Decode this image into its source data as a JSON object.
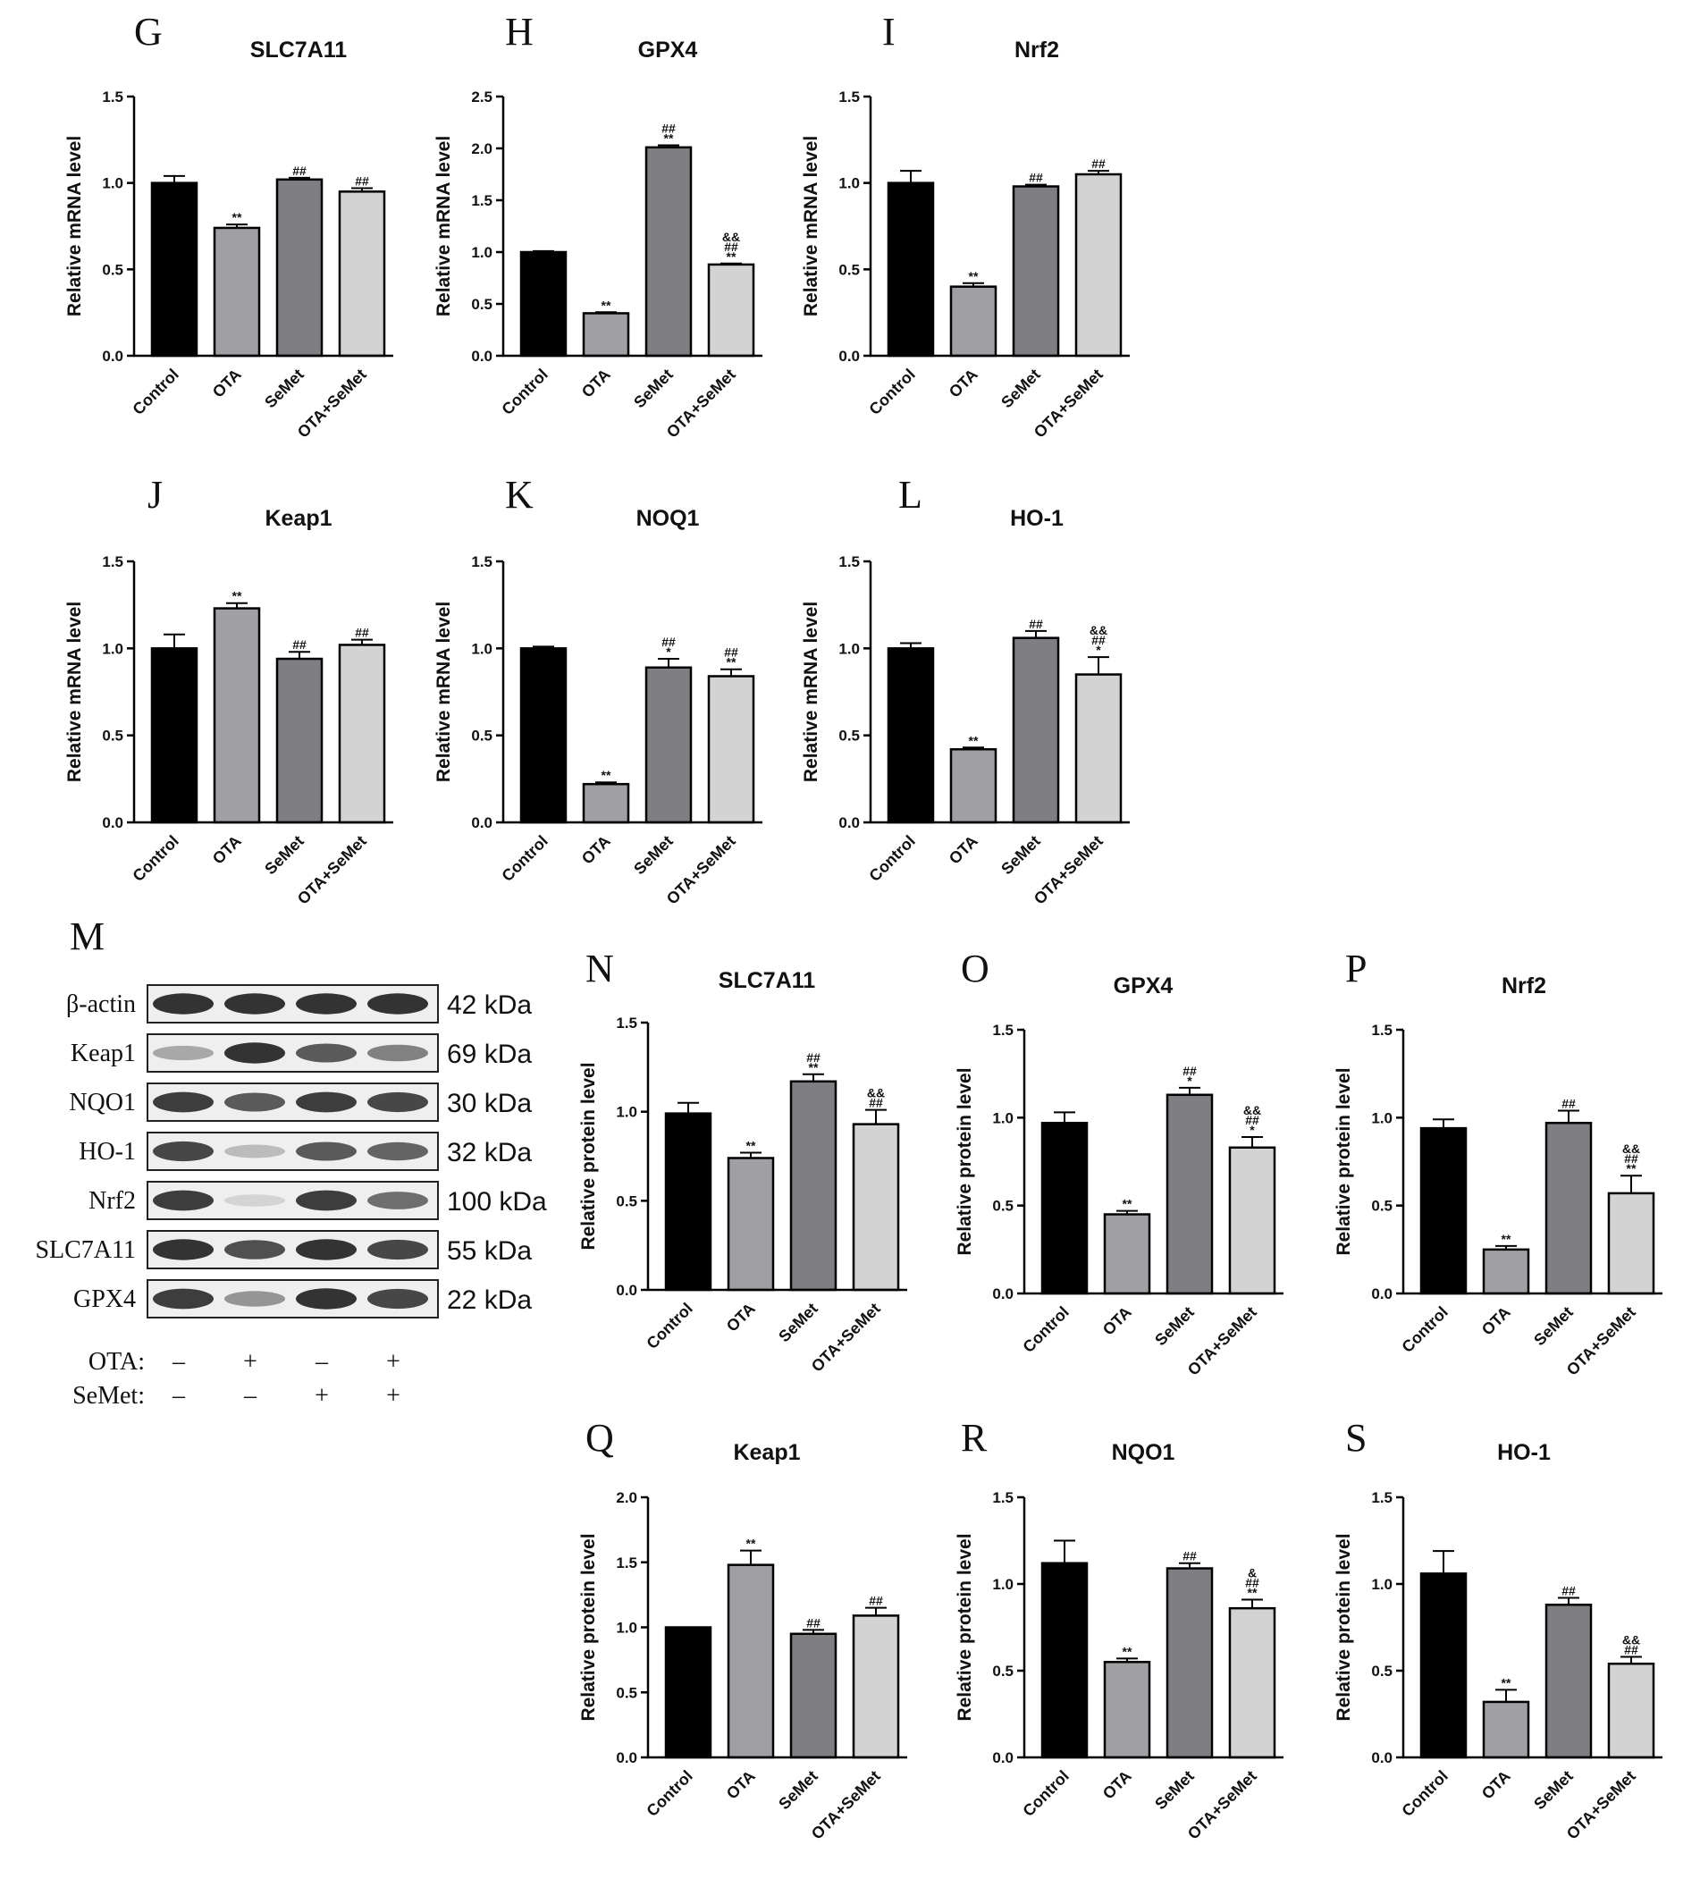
{
  "chart_data": [
    {
      "type": "bar",
      "letter": "G",
      "title": "SLC7A11",
      "ylabel": "Relative mRNA level",
      "categories": [
        "Control",
        "OTA",
        "SeMet",
        "OTA+SeMet"
      ],
      "values": [
        1.0,
        0.74,
        1.02,
        0.95
      ],
      "errors": [
        0.04,
        0.02,
        0.01,
        0.02
      ],
      "ylim": [
        0,
        1.5
      ],
      "ticks": [
        "0.0",
        "0.5",
        "1.0",
        "1.5"
      ],
      "marks": [
        [],
        [
          "**"
        ],
        [
          "##"
        ],
        [
          "##"
        ]
      ]
    },
    {
      "type": "bar",
      "letter": "H",
      "title": "GPX4",
      "ylabel": "Relative mRNA level",
      "categories": [
        "Control",
        "OTA",
        "SeMet",
        "OTA+SeMet"
      ],
      "values": [
        1.0,
        0.41,
        2.01,
        0.88
      ],
      "errors": [
        0.01,
        0.01,
        0.02,
        0.01
      ],
      "ylim": [
        0,
        2.5
      ],
      "ticks": [
        "0.0",
        "0.5",
        "1.0",
        "1.5",
        "2.0",
        "2.5"
      ],
      "marks": [
        [],
        [
          "**"
        ],
        [
          "##",
          "**"
        ],
        [
          "&&",
          "##",
          "**"
        ]
      ]
    },
    {
      "type": "bar",
      "letter": "I",
      "title": "Nrf2",
      "ylabel": "Relative mRNA level",
      "categories": [
        "Control",
        "OTA",
        "SeMet",
        "OTA+SeMet"
      ],
      "values": [
        1.0,
        0.4,
        0.98,
        1.05
      ],
      "errors": [
        0.07,
        0.02,
        0.01,
        0.02
      ],
      "ylim": [
        0,
        1.5
      ],
      "ticks": [
        "0.0",
        "0.5",
        "1.0",
        "1.5"
      ],
      "marks": [
        [],
        [
          "**"
        ],
        [
          "##"
        ],
        [
          "##"
        ]
      ]
    },
    {
      "type": "bar",
      "letter": "J",
      "title": "Keap1",
      "ylabel": "Relative mRNA level",
      "categories": [
        "Control",
        "OTA",
        "SeMet",
        "OTA+SeMet"
      ],
      "values": [
        1.0,
        1.23,
        0.94,
        1.02
      ],
      "errors": [
        0.08,
        0.03,
        0.04,
        0.03
      ],
      "ylim": [
        0,
        1.5
      ],
      "ticks": [
        "0.0",
        "0.5",
        "1.0",
        "1.5"
      ],
      "marks": [
        [],
        [
          "**"
        ],
        [
          "##"
        ],
        [
          "##"
        ]
      ]
    },
    {
      "type": "bar",
      "letter": "K",
      "title": "NOQ1",
      "ylabel": "Relative mRNA level",
      "categories": [
        "Control",
        "OTA",
        "SeMet",
        "OTA+SeMet"
      ],
      "values": [
        1.0,
        0.22,
        0.89,
        0.84
      ],
      "errors": [
        0.01,
        0.01,
        0.05,
        0.04
      ],
      "ylim": [
        0,
        1.5
      ],
      "ticks": [
        "0.0",
        "0.5",
        "1.0",
        "1.5"
      ],
      "marks": [
        [],
        [
          "**"
        ],
        [
          "##",
          "*"
        ],
        [
          "##",
          "**"
        ]
      ]
    },
    {
      "type": "bar",
      "letter": "L",
      "title": "HO-1",
      "ylabel": "Relative mRNA level",
      "categories": [
        "Control",
        "OTA",
        "SeMet",
        "OTA+SeMet"
      ],
      "values": [
        1.0,
        0.42,
        1.06,
        0.85
      ],
      "errors": [
        0.03,
        0.01,
        0.04,
        0.1
      ],
      "ylim": [
        0,
        1.5
      ],
      "ticks": [
        "0.0",
        "0.5",
        "1.0",
        "1.5"
      ],
      "marks": [
        [],
        [
          "**"
        ],
        [
          "##"
        ],
        [
          "&&",
          "##",
          "*"
        ]
      ]
    },
    {
      "type": "bar",
      "letter": "N",
      "title": "SLC7A11",
      "ylabel": "Relative protein level",
      "categories": [
        "Control",
        "OTA",
        "SeMet",
        "OTA+SeMet"
      ],
      "values": [
        0.99,
        0.74,
        1.17,
        0.93
      ],
      "errors": [
        0.06,
        0.03,
        0.04,
        0.08
      ],
      "ylim": [
        0,
        1.5
      ],
      "ticks": [
        "0.0",
        "0.5",
        "1.0",
        "1.5"
      ],
      "marks": [
        [],
        [
          "**"
        ],
        [
          "##",
          "**"
        ],
        [
          "&&",
          "##"
        ]
      ]
    },
    {
      "type": "bar",
      "letter": "O",
      "title": "GPX4",
      "ylabel": "Relative protein level",
      "categories": [
        "Control",
        "OTA",
        "SeMet",
        "OTA+SeMet"
      ],
      "values": [
        0.97,
        0.45,
        1.13,
        0.83
      ],
      "errors": [
        0.06,
        0.02,
        0.04,
        0.06
      ],
      "ylim": [
        0,
        1.5
      ],
      "ticks": [
        "0.0",
        "0.5",
        "1.0",
        "1.5"
      ],
      "marks": [
        [],
        [
          "**"
        ],
        [
          "##",
          "*"
        ],
        [
          "&&",
          "##",
          "*"
        ]
      ]
    },
    {
      "type": "bar",
      "letter": "P",
      "title": "Nrf2",
      "ylabel": "Relative protein level",
      "categories": [
        "Control",
        "OTA",
        "SeMet",
        "OTA+SeMet"
      ],
      "values": [
        0.94,
        0.25,
        0.97,
        0.57
      ],
      "errors": [
        0.05,
        0.02,
        0.07,
        0.1
      ],
      "ylim": [
        0,
        1.5
      ],
      "ticks": [
        "0.0",
        "0.5",
        "1.0",
        "1.5"
      ],
      "marks": [
        [],
        [
          "**"
        ],
        [
          "##"
        ],
        [
          "&&",
          "##",
          "**"
        ]
      ]
    },
    {
      "type": "bar",
      "letter": "Q",
      "title": "Keap1",
      "ylabel": "Relative protein level",
      "categories": [
        "Control",
        "OTA",
        "SeMet",
        "OTA+SeMet"
      ],
      "values": [
        1.0,
        1.48,
        0.95,
        1.09
      ],
      "errors": [
        0.0,
        0.11,
        0.03,
        0.06
      ],
      "ylim": [
        0,
        2.0
      ],
      "ticks": [
        "0.0",
        "0.5",
        "1.0",
        "1.5",
        "2.0"
      ],
      "marks": [
        [],
        [
          "**"
        ],
        [
          "##"
        ],
        [
          "##"
        ]
      ]
    },
    {
      "type": "bar",
      "letter": "R",
      "title": "NQO1",
      "ylabel": "Relative protein level",
      "categories": [
        "Control",
        "OTA",
        "SeMet",
        "OTA+SeMet"
      ],
      "values": [
        1.12,
        0.55,
        1.09,
        0.86
      ],
      "errors": [
        0.13,
        0.02,
        0.03,
        0.05
      ],
      "ylim": [
        0,
        1.5
      ],
      "ticks": [
        "0.0",
        "0.5",
        "1.0",
        "1.5"
      ],
      "marks": [
        [],
        [
          "**"
        ],
        [
          "##"
        ],
        [
          "&",
          "##",
          "**"
        ]
      ]
    },
    {
      "type": "bar",
      "letter": "S",
      "title": "HO-1",
      "ylabel": "Relative protein level",
      "categories": [
        "Control",
        "OTA",
        "SeMet",
        "OTA+SeMet"
      ],
      "values": [
        1.06,
        0.32,
        0.88,
        0.54
      ],
      "errors": [
        0.13,
        0.07,
        0.04,
        0.04
      ],
      "ylim": [
        0,
        1.5
      ],
      "ticks": [
        "0.0",
        "0.5",
        "1.0",
        "1.5"
      ],
      "marks": [
        [],
        [
          "**"
        ],
        [
          "##"
        ],
        [
          "&&",
          "##"
        ]
      ]
    }
  ],
  "colors": {
    "bars": [
      "#000000",
      "#a0a0a4",
      "#7f7f83",
      "#d3d3d3"
    ],
    "axis": "#000000"
  },
  "blot": {
    "letter": "M",
    "rows": [
      {
        "name": "β-actin",
        "kda": "42 kDa"
      },
      {
        "name": "Keap1",
        "kda": "69 kDa"
      },
      {
        "name": "NQO1",
        "kda": "30 kDa"
      },
      {
        "name": "HO-1",
        "kda": "32 kDa"
      },
      {
        "name": "Nrf2",
        "kda": "100 kDa"
      },
      {
        "name": "SLC7A11",
        "kda": "55 kDa"
      },
      {
        "name": "GPX4",
        "kda": "22 kDa"
      }
    ],
    "intensity": [
      [
        0.95,
        0.95,
        0.95,
        0.95
      ],
      [
        0.35,
        0.95,
        0.75,
        0.55
      ],
      [
        0.9,
        0.75,
        0.9,
        0.85
      ],
      [
        0.85,
        0.25,
        0.75,
        0.7
      ],
      [
        0.9,
        0.12,
        0.9,
        0.65
      ],
      [
        0.95,
        0.8,
        0.95,
        0.85
      ],
      [
        0.9,
        0.45,
        0.95,
        0.85
      ]
    ],
    "conditions": [
      {
        "label": "OTA:",
        "marks": [
          "–",
          "+",
          "–",
          "+"
        ]
      },
      {
        "label": "SeMet:",
        "marks": [
          "–",
          "–",
          "+",
          "+"
        ]
      }
    ]
  }
}
